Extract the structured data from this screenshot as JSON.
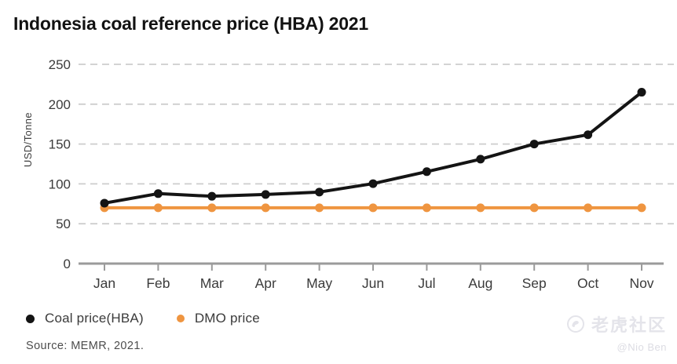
{
  "chart_data": {
    "type": "line",
    "title": "Indonesia coal reference price (HBA) 2021",
    "ylabel": "USD/Tonne",
    "xlabel": "",
    "x": [
      "Jan",
      "Feb",
      "Mar",
      "Apr",
      "May",
      "Jun",
      "Jul",
      "Aug",
      "Sep",
      "Oct",
      "Nov"
    ],
    "series": [
      {
        "name": "Coal price(HBA)",
        "color": "#141414",
        "values": [
          75.84,
          87.79,
          84.47,
          86.68,
          89.74,
          100.33,
          115.35,
          130.99,
          150.03,
          161.63,
          215.01
        ]
      },
      {
        "name": "DMO price",
        "color": "#EF9540",
        "values": [
          70,
          70,
          70,
          70,
          70,
          70,
          70,
          70,
          70,
          70,
          70
        ]
      }
    ],
    "ylim": [
      0,
      250
    ],
    "y_ticks": [
      0,
      50,
      100,
      150,
      200,
      250
    ],
    "grid": "horizontal-dashed",
    "legend_position": "bottom-left",
    "colors": {
      "gridline": "#cdcdcd",
      "axis": "#9b9b9b",
      "tick_text": "#3b3b3b"
    }
  },
  "source": "Source: MEMR, 2021.",
  "watermark": {
    "brand": "老虎社区",
    "handle": "@Nio Ben"
  }
}
